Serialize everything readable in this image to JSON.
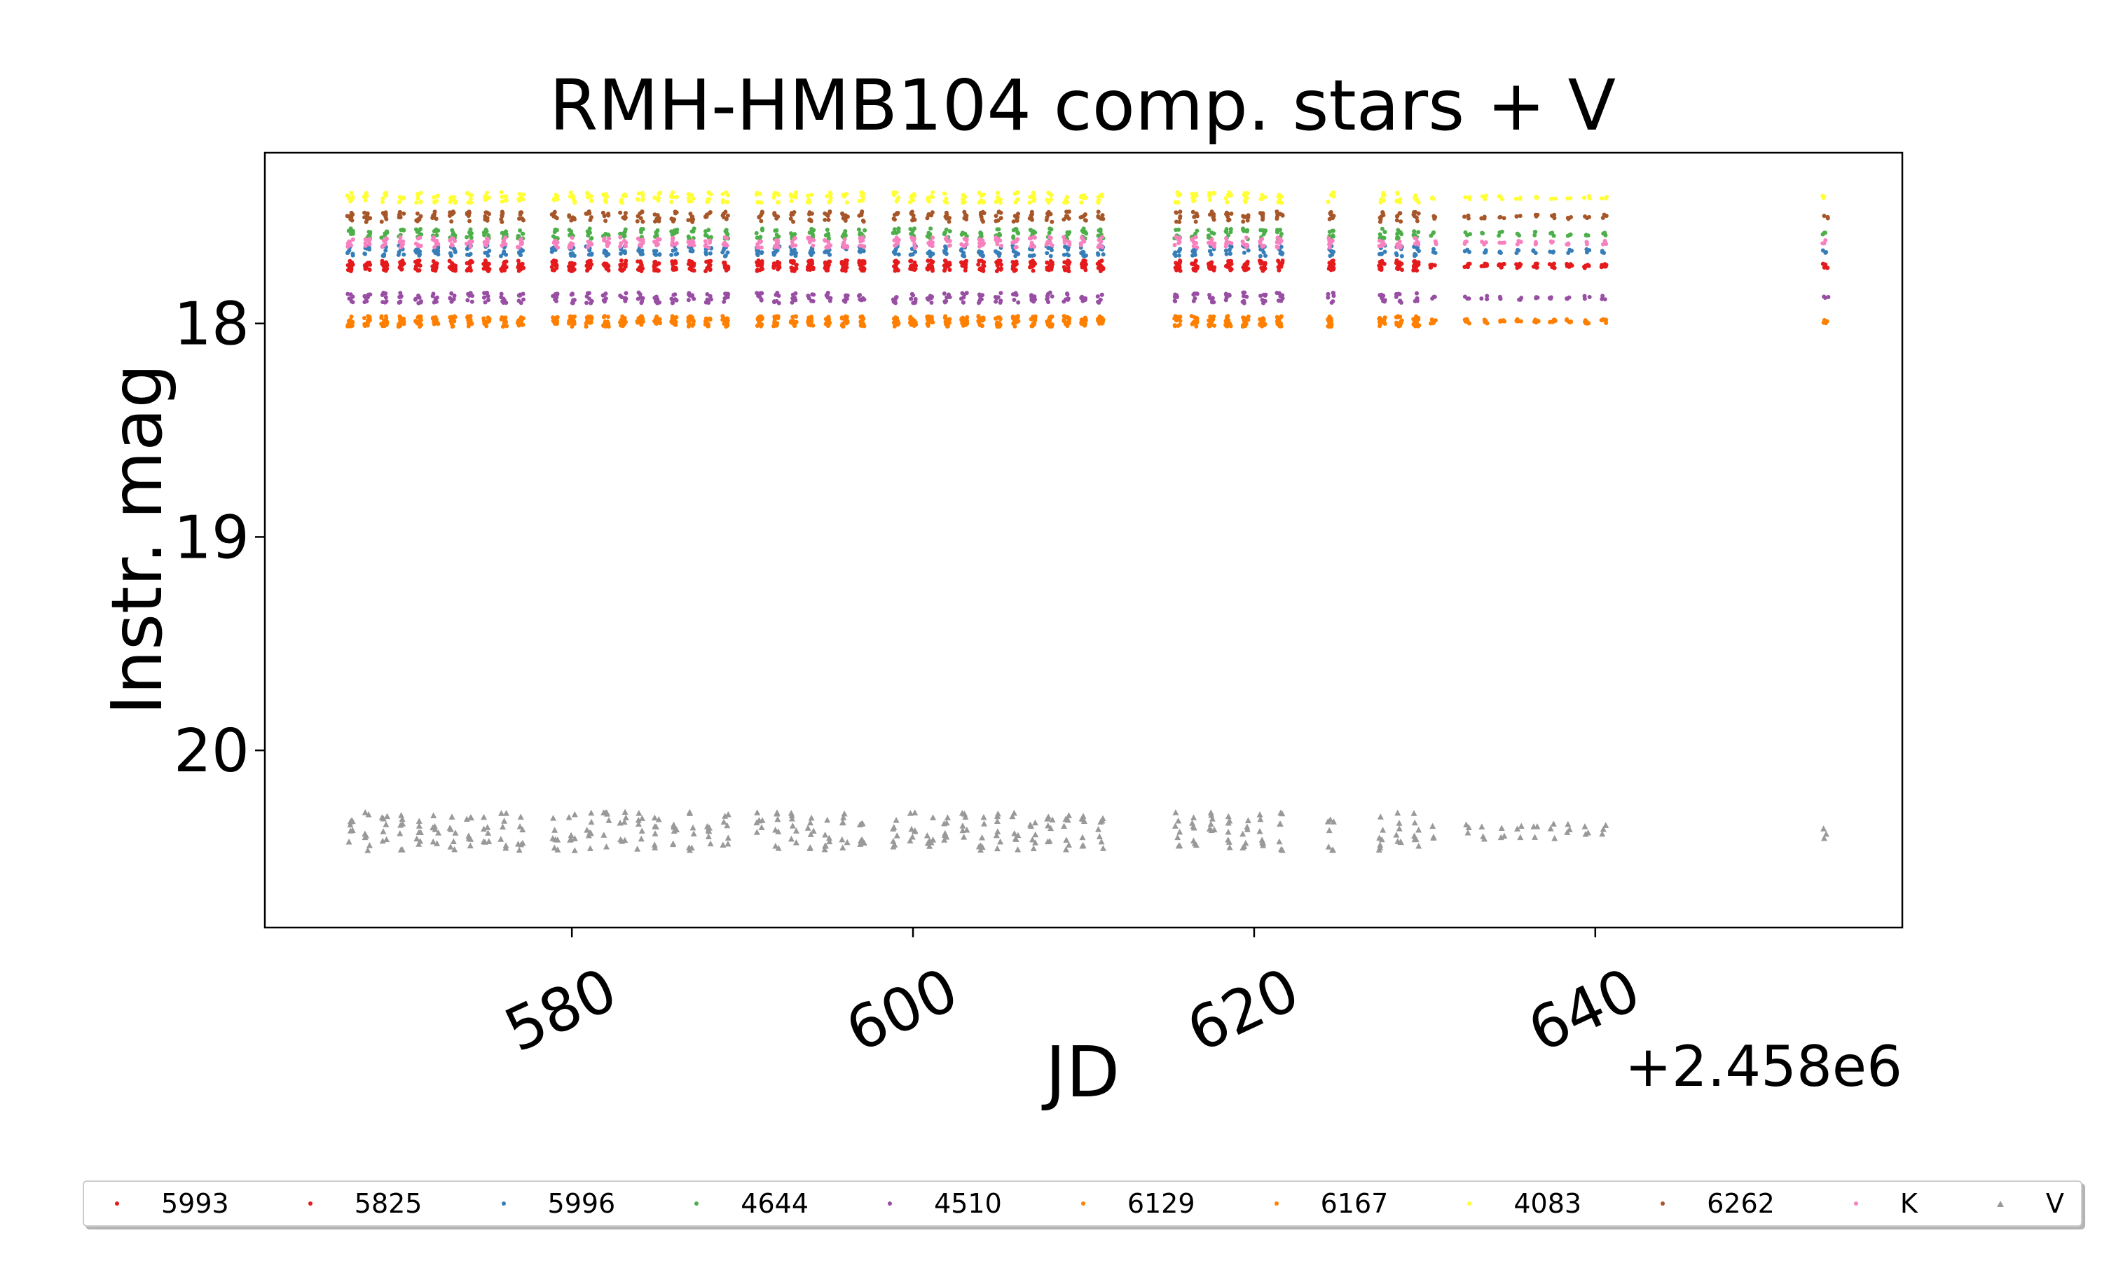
{
  "chart_data": {
    "type": "scatter",
    "title": "RMH-HMB104 comp. stars + V",
    "xlabel": "JD",
    "ylabel": "Instr. mag",
    "x_offset_label": "+2.458e6",
    "xlim": [
      562,
      658
    ],
    "ylim": [
      20.83,
      17.2
    ],
    "y_inverted": true,
    "xticks": [
      580,
      600,
      620,
      640
    ],
    "xtick_labels": [
      "580",
      "600",
      "620",
      "640"
    ],
    "yticks": [
      18,
      19,
      20
    ],
    "ytick_labels": [
      "18",
      "19",
      "20"
    ],
    "grid": false,
    "legend_position": "bottom, below plot, single row",
    "observation_nights_x": [
      567,
      568,
      569,
      570,
      571,
      572,
      573,
      574,
      575,
      576,
      577,
      579,
      580,
      581,
      582,
      583,
      584,
      585,
      586,
      587,
      588,
      589,
      591,
      592,
      593,
      594,
      595,
      596,
      597,
      599,
      600,
      601,
      602,
      603,
      604,
      605,
      606,
      607,
      608,
      609,
      610,
      611,
      615.5,
      616.5,
      617.5,
      618.5,
      619.5,
      620.5,
      621.5,
      624.5,
      627.5,
      628.5,
      629.5,
      630.5,
      632.5,
      633.5,
      634.5,
      635.5,
      636.5,
      637.5,
      638.5,
      639.5,
      640.5,
      653.5
    ],
    "series": [
      {
        "name": "5993",
        "marker": "point",
        "color": "#e41a1c",
        "y": 17.73
      },
      {
        "name": "5825",
        "marker": "point",
        "color": "#e41a1c",
        "y": 17.73
      },
      {
        "name": "5996",
        "marker": "point",
        "color": "#377eb8",
        "y": 17.66
      },
      {
        "name": "4644",
        "marker": "point",
        "color": "#4daf4a",
        "y": 17.58
      },
      {
        "name": "4510",
        "marker": "point",
        "color": "#984ea3",
        "y": 17.88
      },
      {
        "name": "6129",
        "marker": "point",
        "color": "#ff7f00",
        "y": 17.99
      },
      {
        "name": "6167",
        "marker": "point",
        "color": "#ff7f00",
        "y": 17.99
      },
      {
        "name": "4083",
        "marker": "point",
        "color": "#ffff33",
        "y": 17.41
      },
      {
        "name": "6262",
        "marker": "point",
        "color": "#a65628",
        "y": 17.5
      },
      {
        "name": "K",
        "marker": "point",
        "color": "#f781bf",
        "y": 17.62
      },
      {
        "name": "V",
        "marker": "triangle",
        "color": "#999999",
        "y": 20.38
      }
    ]
  }
}
